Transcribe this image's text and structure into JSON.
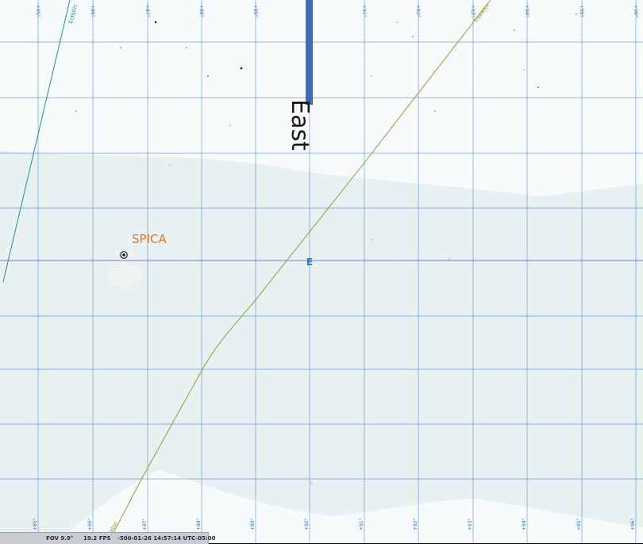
{
  "colors": {
    "sky_background": "#e8f1f2",
    "sky_band": "#f7fbfb",
    "grid_line": "#3f7fcf",
    "grid_label": "#2f6fbf",
    "horizon_line": "#8c6fd6",
    "ecliptic": "#1f8f9f",
    "equator": "#9a9a2a",
    "compass_bar": "#3d6fb8",
    "compass_text": "#1a1a1a",
    "star_label": "#e07a22",
    "cardinal_marker": "#1e7ad8",
    "status_bar_bg": "#c9ccd0"
  },
  "map": {
    "compass_label": "East",
    "cardinal_marker": "E",
    "star_name": "SPICA",
    "star_icon": "star-target-icon",
    "ecliptic_label": "Ecliptic",
    "equator_label_top": "Equator",
    "equator_label_bottom": "Equator",
    "top_grid_labels": [
      "+85°",
      "+86°",
      "+87°",
      "+88°",
      "+89°",
      "+90°",
      "+91°",
      "+92°",
      "+93°",
      "+94°",
      "+95°",
      "+96°"
    ],
    "bottom_grid_labels": [
      "+85°",
      "+86°",
      "+87°",
      "+88°",
      "+89°",
      "+90°",
      "+91°",
      "+92°",
      "+93°",
      "+94°",
      "+95°",
      "+96°"
    ]
  },
  "status_bar": {
    "fov": "FOV 9.9°",
    "fps": "19.2 FPS",
    "datetime": "-500-01-26 14:57:14 UTC-05:00"
  }
}
